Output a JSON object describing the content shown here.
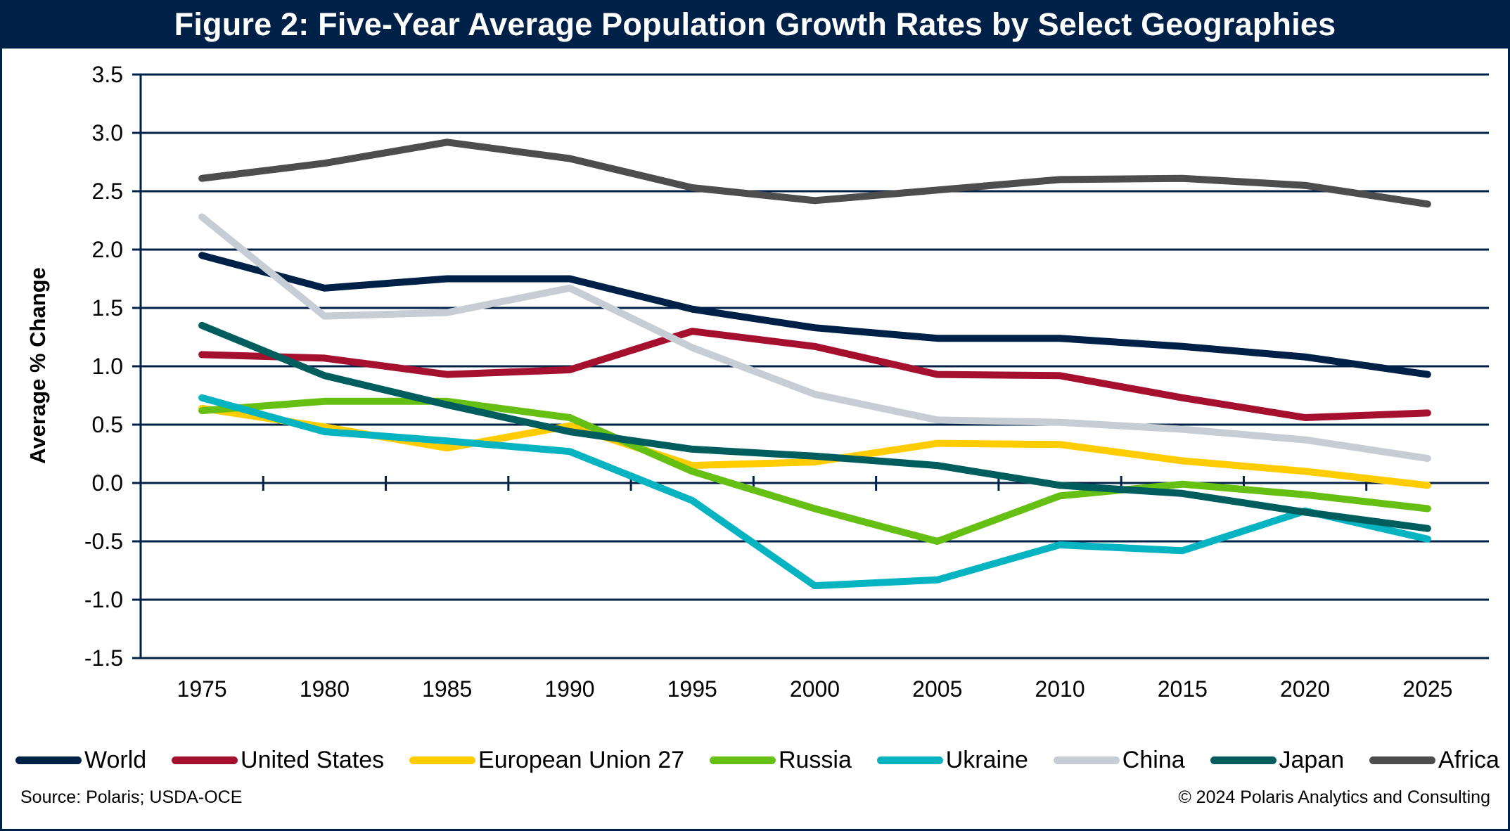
{
  "header": {
    "title": "Figure 2: Five-Year Average Population Growth Rates by Select Geographies"
  },
  "footer": {
    "source": "Source: Polaris; USDA-OCE",
    "copyright": "© 2024 Polaris Analytics and Consulting"
  },
  "colors": {
    "frame": "#002147",
    "gridline": "#002147",
    "title_bar": "#002147"
  },
  "chart_data": {
    "type": "line",
    "title": "Figure 2: Five-Year Average Population Growth Rates by Select Geographies",
    "xlabel": "",
    "ylabel": "Average % Change",
    "ylim": [
      -1.5,
      3.5
    ],
    "yticks": [
      "3.5",
      "3.0",
      "2.5",
      "2.0",
      "1.5",
      "1.0",
      "0.5",
      "0.0",
      "-0.5",
      "-1.0",
      "-1.5"
    ],
    "ytick_values": [
      3.5,
      3.0,
      2.5,
      2.0,
      1.5,
      1.0,
      0.5,
      0.0,
      -0.5,
      -1.0,
      -1.5
    ],
    "grid": true,
    "legend_position": "bottom",
    "categories": [
      "1975",
      "1980",
      "1985",
      "1990",
      "1995",
      "2000",
      "2005",
      "2010",
      "2015",
      "2020",
      "2025"
    ],
    "series": [
      {
        "name": "World",
        "color": "#002147",
        "values": [
          1.95,
          1.67,
          1.75,
          1.75,
          1.49,
          1.33,
          1.24,
          1.24,
          1.17,
          1.08,
          0.93
        ]
      },
      {
        "name": "United States",
        "color": "#A6102F",
        "values": [
          1.1,
          1.07,
          0.93,
          0.97,
          1.3,
          1.17,
          0.93,
          0.92,
          0.73,
          0.56,
          0.6
        ]
      },
      {
        "name": "European Union 27",
        "color": "#FFCC00",
        "values": [
          0.64,
          0.48,
          0.3,
          0.49,
          0.15,
          0.18,
          0.34,
          0.33,
          0.19,
          0.1,
          -0.02
        ]
      },
      {
        "name": "Russia",
        "color": "#66BF13",
        "values": [
          0.62,
          0.7,
          0.7,
          0.56,
          0.1,
          -0.22,
          -0.5,
          -0.11,
          -0.01,
          -0.1,
          -0.22
        ]
      },
      {
        "name": "Ukraine",
        "color": "#06B4C1",
        "values": [
          0.73,
          0.44,
          0.36,
          0.27,
          -0.15,
          -0.88,
          -0.83,
          -0.53,
          -0.58,
          -0.24,
          -0.48
        ]
      },
      {
        "name": "China",
        "color": "#C6CDD4",
        "values": [
          2.28,
          1.43,
          1.46,
          1.67,
          1.16,
          0.76,
          0.54,
          0.52,
          0.46,
          0.37,
          0.21
        ]
      },
      {
        "name": "Japan",
        "color": "#005D5D",
        "values": [
          1.35,
          0.92,
          0.67,
          0.44,
          0.29,
          0.23,
          0.15,
          -0.02,
          -0.09,
          -0.25,
          -0.39
        ]
      },
      {
        "name": "Africa",
        "color": "#4D4D4D",
        "values": [
          2.61,
          2.74,
          2.92,
          2.78,
          2.53,
          2.42,
          2.51,
          2.6,
          2.61,
          2.55,
          2.39
        ]
      }
    ]
  }
}
